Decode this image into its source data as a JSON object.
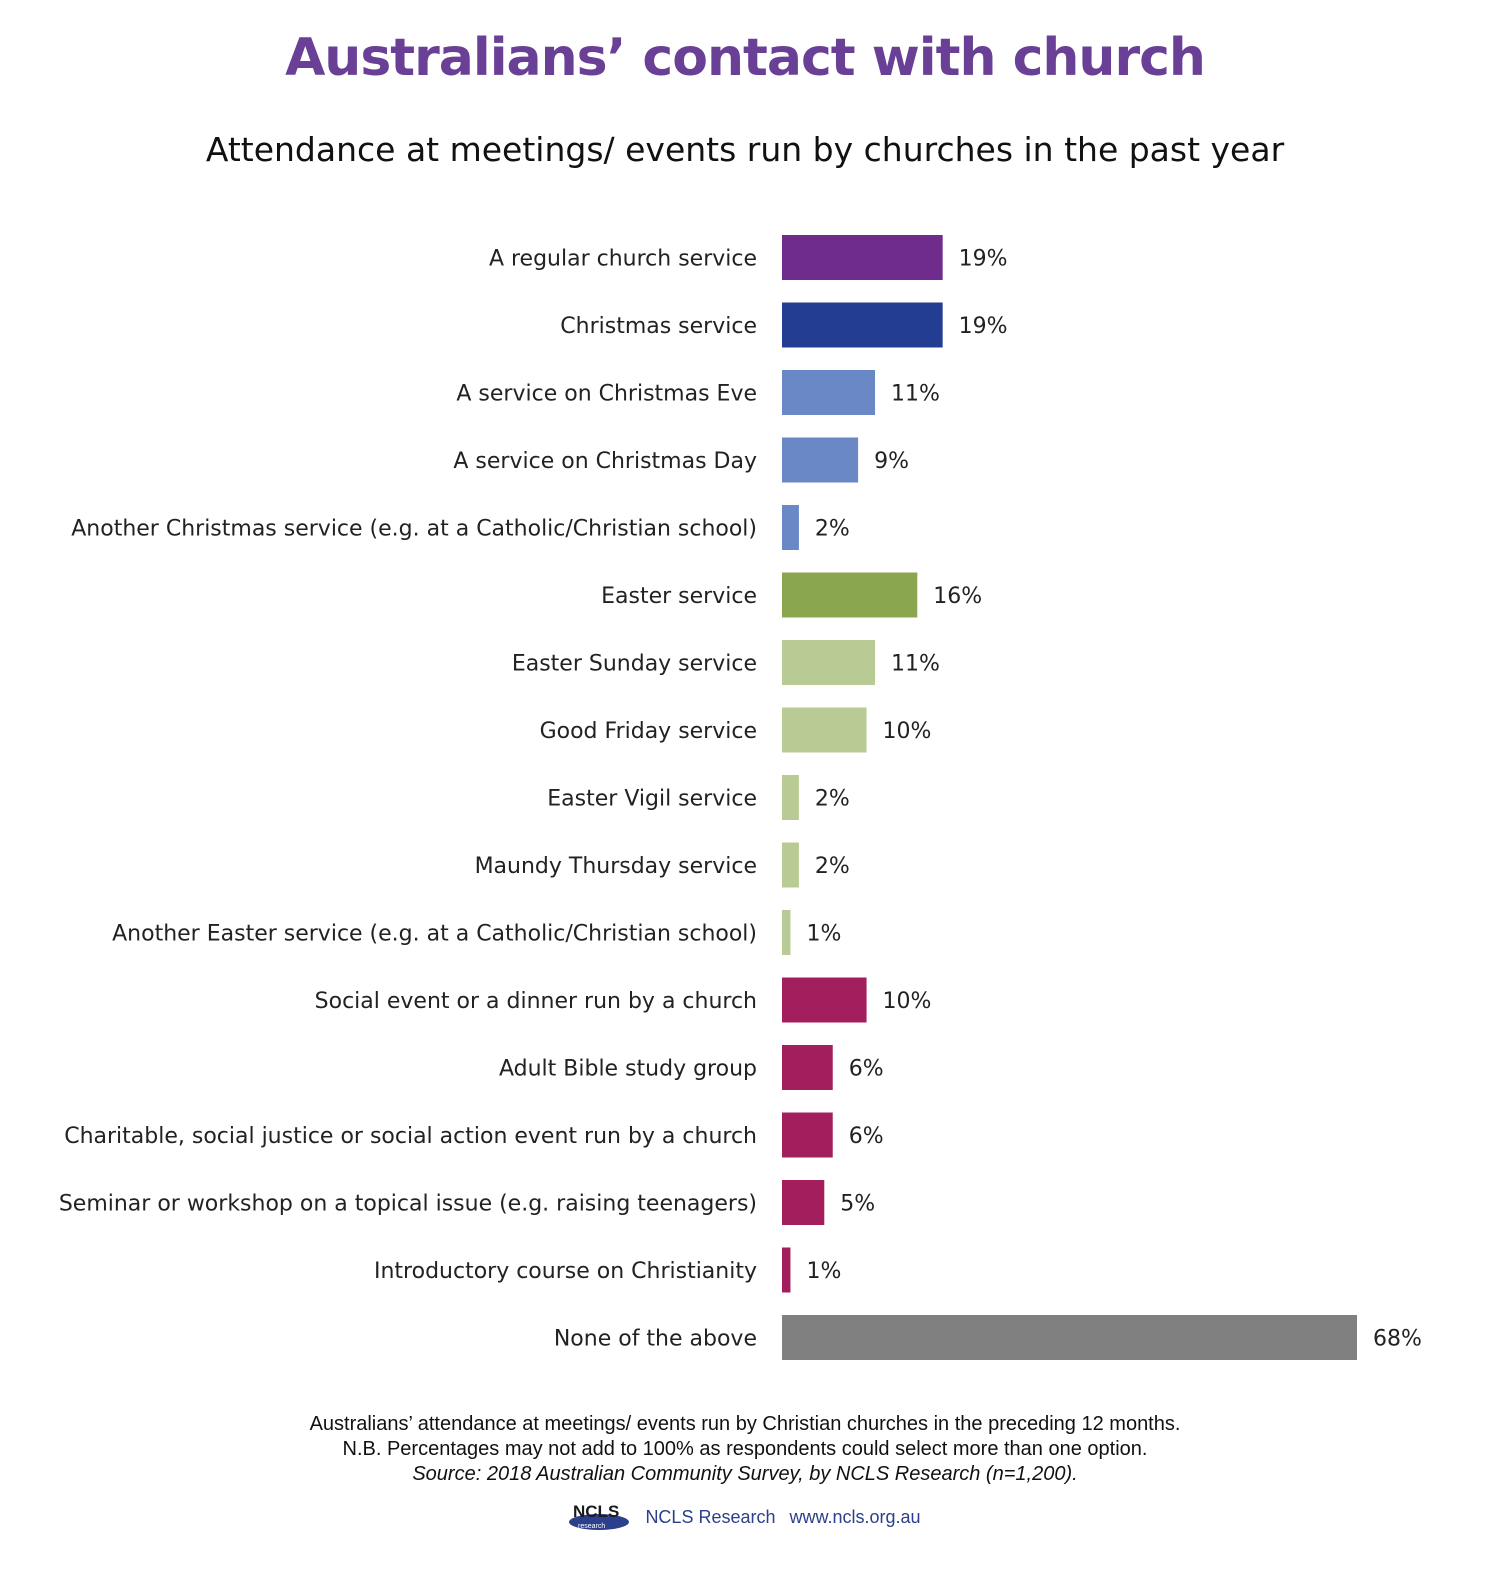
{
  "title": "Australians’ contact with church",
  "subtitle": "Attendance at meetings/ events run by churches in the past year",
  "chart_data": {
    "type": "bar",
    "orientation": "horizontal",
    "categories": [
      "A regular church service",
      "Christmas service",
      "A service on Christmas Eve",
      "A service on Christmas Day",
      "Another Christmas service (e.g. at a Catholic/Christian school)",
      "Easter service",
      "Easter Sunday service",
      "Good Friday service",
      "Easter Vigil service",
      "Maundy Thursday service",
      "Another Easter service (e.g. at a Catholic/Christian school)",
      "Social event or a dinner run by a church",
      "Adult Bible study group",
      "Charitable, social justice or social action event run by a church",
      "Seminar or workshop on a topical issue (e.g. raising teenagers)",
      "Introductory course on Christianity",
      "None of the above"
    ],
    "values": [
      19,
      19,
      11,
      9,
      2,
      16,
      11,
      10,
      2,
      2,
      1,
      10,
      6,
      6,
      5,
      1,
      68
    ],
    "value_labels": [
      "19%",
      "19%",
      "11%",
      "9%",
      "2%",
      "16%",
      "11%",
      "10%",
      "2%",
      "2%",
      "1%",
      "10%",
      "6%",
      "6%",
      "5%",
      "1%",
      "68%"
    ],
    "colors": [
      "#6f2c8c",
      "#223d91",
      "#6a88c6",
      "#6a88c6",
      "#6a88c6",
      "#8aa64f",
      "#b9cb95",
      "#b9cb95",
      "#b9cb95",
      "#b9cb95",
      "#b9cb95",
      "#a31e5d",
      "#a31e5d",
      "#a31e5d",
      "#a31e5d",
      "#a31e5d",
      "#808080"
    ],
    "xlim": [
      0,
      68
    ],
    "grid": false,
    "legend": "none"
  },
  "notes": {
    "line1": "Australians’ attendance at meetings/ events run by Christian churches in the preceding 12 months.",
    "line2": "N.B. Percentages may not add to 100% as respondents could select more than one option.",
    "source": "Source: 2018 Australian Community Survey, by NCLS Research (n=1,200)."
  },
  "footer": {
    "logo_text": "NCLS",
    "logo_subtext": "research",
    "org": "NCLS Research",
    "url": "www.ncls.org.au",
    "brand_color": "#2b3f8c"
  }
}
